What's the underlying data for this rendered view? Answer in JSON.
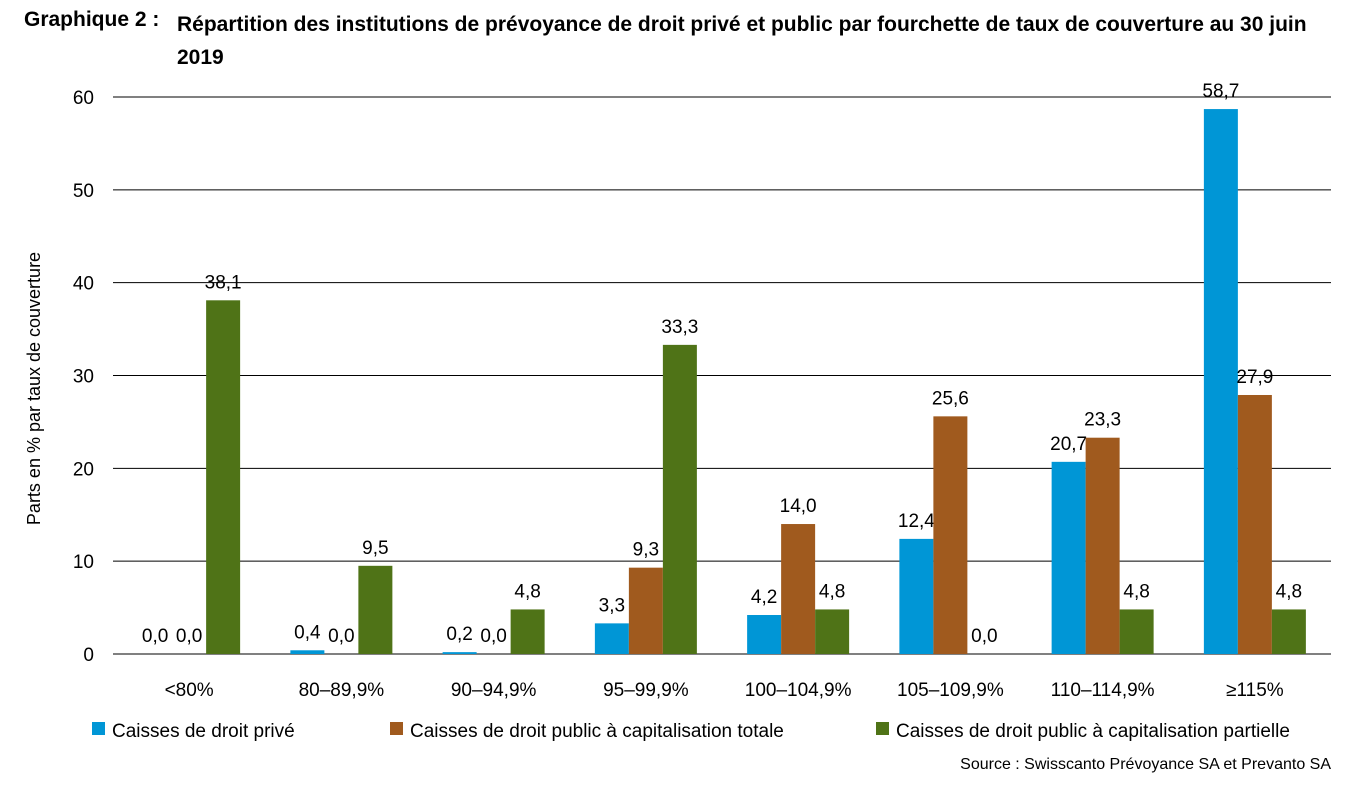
{
  "title": {
    "prefix": "Graphique 2 :",
    "text": "Répartition des institutions de prévoyance de droit privé et public par fourchette de taux de couverture au 30 juin 2019"
  },
  "source": "Source : Swisscanto Prévoyance SA et Prevanto SA",
  "chart_data": {
    "type": "bar",
    "ylabel": "Parts en % par taux de couverture",
    "ylim": [
      0,
      60
    ],
    "yticks": [
      0,
      10,
      20,
      30,
      40,
      50,
      60
    ],
    "grid": true,
    "legend_position": "bottom",
    "categories": [
      "<80%",
      "80–89,9%",
      "90–94,9%",
      "95–99,9%",
      "100–104,9%",
      "105–109,9%",
      "110–114,9%",
      "≥115%"
    ],
    "series": [
      {
        "name": "Caisses de droit privé",
        "color": "#0096d6",
        "values": [
          0.0,
          0.4,
          0.2,
          3.3,
          4.2,
          12.4,
          20.7,
          58.7
        ],
        "labels": [
          "0,0",
          "0,4",
          "0,2",
          "3,3",
          "4,2",
          "12,4",
          "20,7",
          "58,7"
        ]
      },
      {
        "name": "Caisses de droit public à capitalisation totale",
        "color": "#a05a1e",
        "values": [
          0.0,
          0.0,
          0.0,
          9.3,
          14.0,
          25.6,
          23.3,
          27.9
        ],
        "labels": [
          "0,0",
          "0,0",
          "0,0",
          "9,3",
          "14,0",
          "25,6",
          "23,3",
          "27,9"
        ]
      },
      {
        "name": "Caisses de droit public à capitalisation partielle",
        "color": "#4f7317",
        "values": [
          38.1,
          9.5,
          4.8,
          33.3,
          4.8,
          0.0,
          4.8,
          4.8
        ],
        "labels": [
          "38,1",
          "9,5",
          "4,8",
          "33,3",
          "4,8",
          "0,0",
          "4,8",
          "4,8"
        ]
      }
    ]
  }
}
